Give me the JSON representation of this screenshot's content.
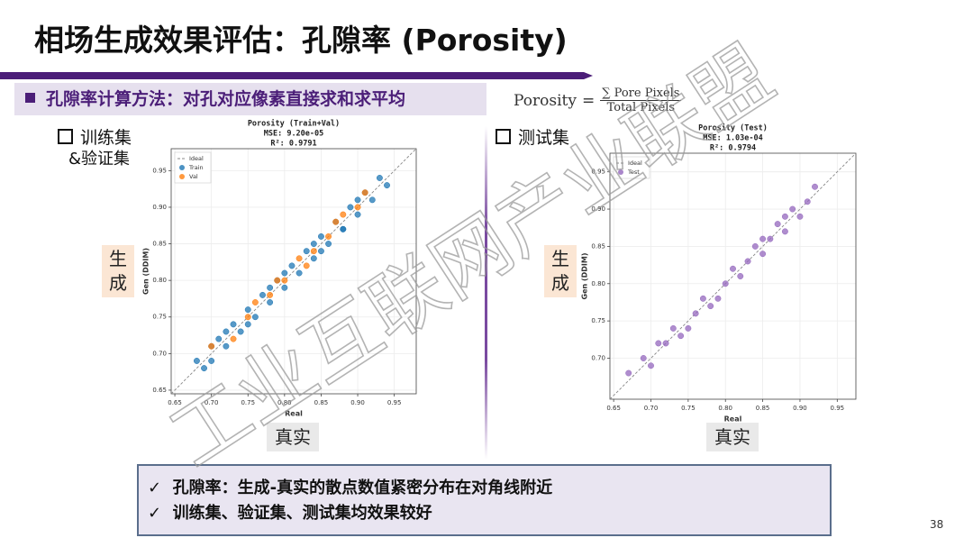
{
  "title": "相场生成效果评估：孔隙率 (Porosity)",
  "subheading": "孔隙率计算方法：对孔对应像素直接求和求平均",
  "formula": {
    "lhs": "Porosity",
    "eq": "=",
    "numerator": "∑ Pore Pixels",
    "denominator": "Total Pixels"
  },
  "panels": [
    {
      "label": "训练集",
      "label2": "&验证集"
    },
    {
      "label": "测试集"
    }
  ],
  "y_tag": "生成",
  "x_tag": "真实",
  "bullets": [
    "孔隙率：生成-真实的散点数值紧密分布在对角线附近",
    "训练集、验证集、测试集均效果较好"
  ],
  "page_number": "38",
  "watermark": "工业互联网产业联盟",
  "chart_data": [
    {
      "type": "scatter",
      "title": "Porosity (Train+Val)",
      "subtitle": "MSE: 9.20e-05",
      "r2": "R²: 0.9791",
      "x_label": "Real",
      "y_label": "Gen (DDIM)",
      "reference_line": {
        "name": "Ideal",
        "color": "#888888"
      },
      "xlim": [
        0.645,
        0.98
      ],
      "ylim": [
        0.645,
        0.98
      ],
      "grid": true,
      "xticks": [
        0.65,
        {
          "value": 0.7,
          "label": "0.70"
        },
        0.75,
        {
          "value": 0.8,
          "label": "0.80"
        },
        0.85,
        {
          "value": 0.9,
          "label": "0.90"
        },
        0.95
      ],
      "yticks": [
        0.65,
        {
          "value": 0.7,
          "label": "0.70"
        },
        0.75,
        {
          "value": 0.8,
          "label": "0.80"
        },
        0.85,
        {
          "value": 0.9,
          "label": "0.90"
        },
        0.95
      ],
      "series": [
        {
          "name": "Train",
          "color": "#1f77b4",
          "x": [
            0.68,
            0.69,
            0.7,
            0.71,
            0.72,
            0.73,
            0.74,
            0.75,
            0.76,
            0.77,
            0.78,
            0.79,
            0.8,
            0.81,
            0.82,
            0.83,
            0.84,
            0.85,
            0.86,
            0.87,
            0.88,
            0.89,
            0.9,
            0.91,
            0.92,
            0.93,
            0.94,
            0.7,
            0.75,
            0.8,
            0.85,
            0.9,
            0.72,
            0.78,
            0.84,
            0.88
          ],
          "values": [
            0.69,
            0.68,
            0.71,
            0.72,
            0.71,
            0.74,
            0.73,
            0.76,
            0.75,
            0.78,
            0.77,
            0.8,
            0.79,
            0.82,
            0.81,
            0.84,
            0.83,
            0.86,
            0.85,
            0.88,
            0.87,
            0.9,
            0.89,
            0.92,
            0.91,
            0.94,
            0.93,
            0.69,
            0.74,
            0.81,
            0.84,
            0.91,
            0.73,
            0.79,
            0.85,
            0.87
          ]
        },
        {
          "name": "Val",
          "color": "#ff7f0e",
          "x": [
            0.7,
            0.73,
            0.76,
            0.78,
            0.8,
            0.82,
            0.84,
            0.86,
            0.88,
            0.9,
            0.75,
            0.79,
            0.83,
            0.87,
            0.91
          ],
          "values": [
            0.71,
            0.72,
            0.77,
            0.78,
            0.8,
            0.83,
            0.84,
            0.86,
            0.89,
            0.9,
            0.75,
            0.8,
            0.82,
            0.88,
            0.92
          ]
        }
      ]
    },
    {
      "type": "scatter",
      "title": "Porosity (Test)",
      "subtitle": "MSE: 1.03e-04",
      "r2": "R²: 0.9794",
      "x_label": "Real",
      "y_label": "Gen (DDIM)",
      "reference_line": {
        "name": "Ideal",
        "color": "#888888"
      },
      "xlim": [
        0.645,
        0.975
      ],
      "ylim": [
        0.645,
        0.975
      ],
      "grid": true,
      "xticks": [
        0.65,
        {
          "value": 0.7,
          "label": "0.70"
        },
        0.75,
        {
          "value": 0.8,
          "label": "0.80"
        },
        0.85,
        {
          "value": 0.9,
          "label": "0.90"
        },
        0.95
      ],
      "yticks": [
        {
          "value": 0.7,
          "label": "0.70"
        },
        0.75,
        {
          "value": 0.8,
          "label": "0.80"
        },
        0.85,
        {
          "value": 0.9,
          "label": "0.90"
        },
        0.95
      ],
      "series": [
        {
          "name": "Test",
          "color": "#9467bd",
          "x": [
            0.67,
            0.69,
            0.7,
            0.72,
            0.73,
            0.74,
            0.76,
            0.77,
            0.78,
            0.8,
            0.81,
            0.82,
            0.83,
            0.84,
            0.85,
            0.86,
            0.87,
            0.88,
            0.89,
            0.9,
            0.91,
            0.92,
            0.71,
            0.79,
            0.85,
            0.88,
            0.75
          ],
          "values": [
            0.68,
            0.7,
            0.69,
            0.72,
            0.74,
            0.73,
            0.76,
            0.78,
            0.77,
            0.8,
            0.82,
            0.81,
            0.83,
            0.85,
            0.84,
            0.86,
            0.88,
            0.87,
            0.9,
            0.89,
            0.91,
            0.93,
            0.72,
            0.78,
            0.86,
            0.89,
            0.74
          ]
        }
      ]
    }
  ]
}
